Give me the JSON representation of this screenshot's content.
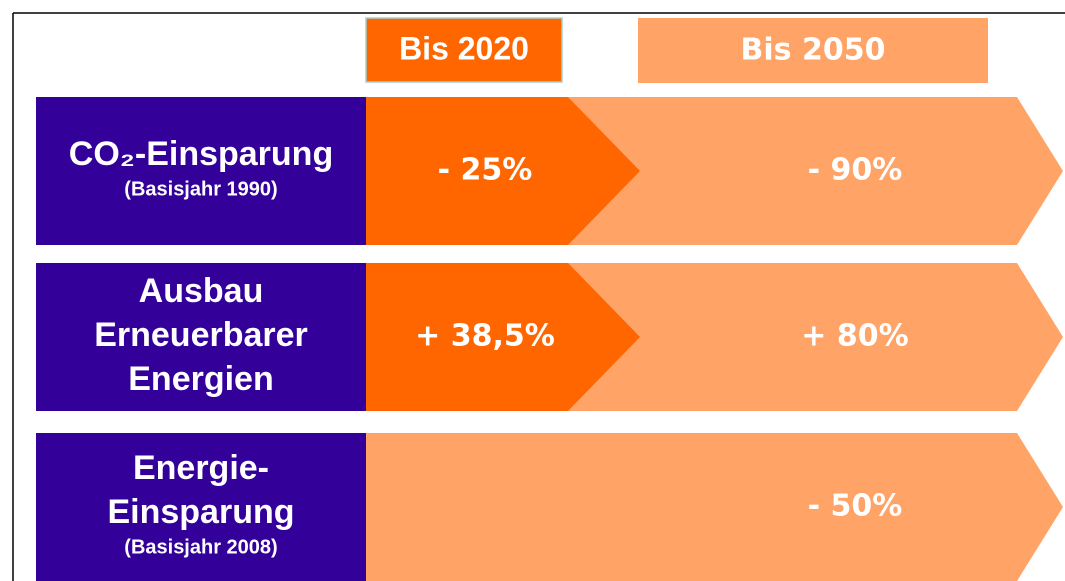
{
  "header": {
    "col1": "Bis 2020",
    "col2": "Bis 2050"
  },
  "rows": [
    {
      "label_lines": [
        "CO₂-Einsparung"
      ],
      "sublabel": "(Basisjahr 1990)",
      "bis_2020": "- 25%",
      "bis_2050": "- 90%"
    },
    {
      "label_lines": [
        "Ausbau",
        "Erneuerbarer",
        "Energien"
      ],
      "bis_2020": "+ 38,5%",
      "bis_2050": "+ 80%"
    },
    {
      "label_lines": [
        "Energie-",
        "Einsparung"
      ],
      "sublabel": "(Basisjahr 2008)",
      "bis_2050": "- 50%"
    }
  ]
}
